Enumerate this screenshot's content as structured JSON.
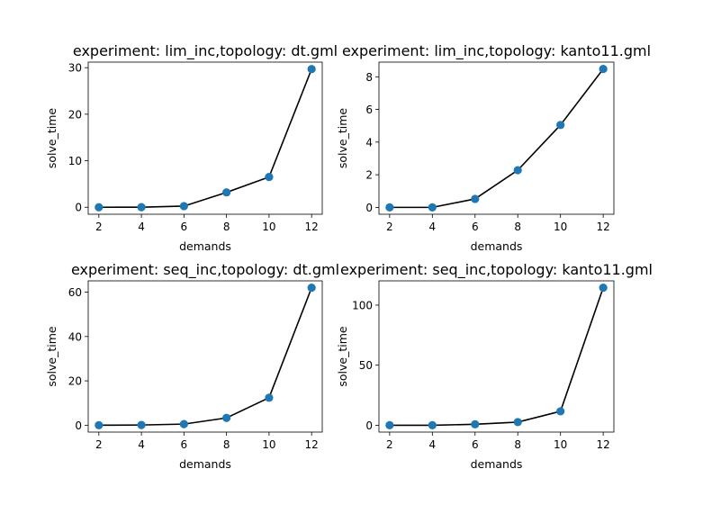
{
  "colors": {
    "line": "#000000",
    "marker": "#1f77b4",
    "background": "#ffffff",
    "axes": "#000000"
  },
  "chart_data": [
    {
      "type": "line",
      "title": "experiment: lim_inc,topology: dt.gml",
      "xlabel": "demands",
      "ylabel": "solve_time",
      "x": [
        2,
        4,
        6,
        8,
        10,
        12
      ],
      "series": [
        {
          "values": [
            0.0,
            0.02,
            0.25,
            3.2,
            6.5,
            29.7
          ]
        }
      ],
      "xlim": [
        1.5,
        12.5
      ],
      "ylim": [
        -1.5,
        31.2
      ],
      "xticks": [
        2,
        4,
        6,
        8,
        10,
        12
      ],
      "yticks": [
        0,
        10,
        20,
        30
      ],
      "grid": false,
      "markers": true
    },
    {
      "type": "line",
      "title": "experiment: lim_inc,topology: kanto11.gml",
      "xlabel": "demands",
      "ylabel": "solve_time",
      "x": [
        2,
        4,
        6,
        8,
        10,
        12
      ],
      "series": [
        {
          "values": [
            0.0,
            0.0,
            0.52,
            2.28,
            5.05,
            8.48
          ]
        }
      ],
      "xlim": [
        1.5,
        12.5
      ],
      "ylim": [
        -0.42,
        8.9
      ],
      "xticks": [
        2,
        4,
        6,
        8,
        10,
        12
      ],
      "yticks": [
        0,
        2,
        4,
        6,
        8
      ],
      "grid": false,
      "markers": true
    },
    {
      "type": "line",
      "title": "experiment: seq_inc,topology: dt.gml",
      "xlabel": "demands",
      "ylabel": "solve_time",
      "x": [
        2,
        4,
        6,
        8,
        10,
        12
      ],
      "series": [
        {
          "values": [
            0.0,
            0.1,
            0.5,
            3.3,
            12.4,
            62.0
          ]
        }
      ],
      "xlim": [
        1.5,
        12.5
      ],
      "ylim": [
        -3.1,
        65.1
      ],
      "xticks": [
        2,
        4,
        6,
        8,
        10,
        12
      ],
      "yticks": [
        0,
        20,
        40,
        60
      ],
      "grid": false,
      "markers": true
    },
    {
      "type": "line",
      "title": "experiment: seq_inc,topology: kanto11.gml",
      "xlabel": "demands",
      "ylabel": "solve_time",
      "x": [
        2,
        4,
        6,
        8,
        10,
        12
      ],
      "series": [
        {
          "values": [
            0.0,
            0.0,
            0.8,
            2.6,
            11.6,
            114.5
          ]
        }
      ],
      "xlim": [
        1.5,
        12.5
      ],
      "ylim": [
        -5.7,
        120.2
      ],
      "xticks": [
        2,
        4,
        6,
        8,
        10,
        12
      ],
      "yticks": [
        0,
        50,
        100
      ],
      "grid": false,
      "markers": true
    }
  ]
}
